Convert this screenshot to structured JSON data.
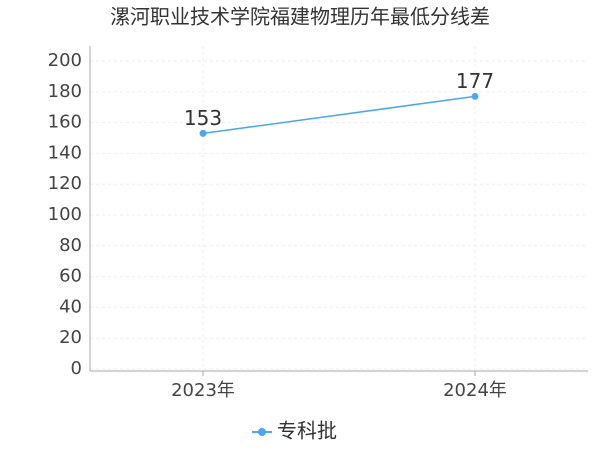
{
  "chart_data": {
    "type": "line",
    "title": "漯河职业技术学院福建物理历年最低分线差",
    "categories": [
      "2023年",
      "2024年"
    ],
    "series": [
      {
        "name": "专科批",
        "color": "#4da6f0",
        "values": [
          153,
          177
        ]
      }
    ],
    "ylim": [
      0,
      200
    ],
    "yticks": [
      0,
      20,
      40,
      60,
      80,
      100,
      120,
      140,
      160,
      180,
      200
    ],
    "grid": true
  }
}
